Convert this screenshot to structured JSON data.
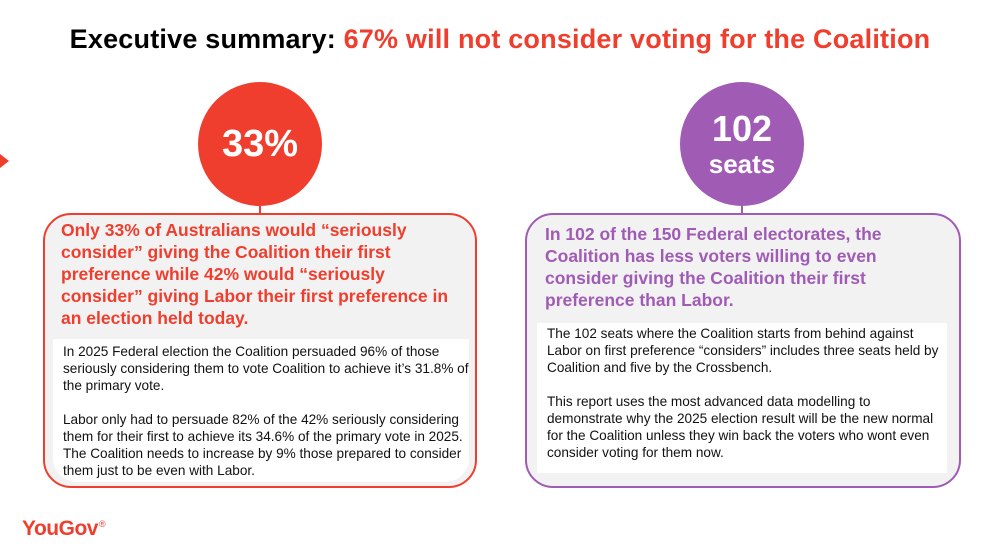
{
  "title": {
    "prefix": "Executive summary: ",
    "highlight": "67% will not consider voting for the Coalition"
  },
  "left_panel": {
    "circle_value": "33%",
    "headline": "Only 33% of Australians would “seriously consider” giving the Coalition their first preference while 42% would “seriously consider” giving Labor their first preference in an election held today.",
    "paragraphs": [
      "In 2025 Federal election the Coalition persuaded 96% of those seriously considering them to vote Coalition to achieve it’s 31.8% of the primary vote.",
      "Labor only had to persuade 82% of the 42% seriously considering them for their first to achieve its 34.6% of the primary vote in 2025. The Coalition needs to increase by 9% those prepared to consider them just to be even with Labor."
    ]
  },
  "right_panel": {
    "circle_value": "102",
    "circle_unit": "seats",
    "headline": "In 102 of the 150 Federal electorates, the Coalition has less voters willing to even consider giving the Coalition their first preference than Labor.",
    "paragraphs": [
      "The 102 seats where the Coalition starts from behind against Labor on first preference “considers” includes three seats held by Coalition and five by the Crossbench.",
      "This report uses the most advanced data modelling to demonstrate why the 2025 election result will be the new normal for the Coalition unless they win back the voters who wont even consider voting for them now."
    ]
  },
  "logo": {
    "text": "YouGov",
    "mark": "®"
  },
  "colors": {
    "accent_red": "#ef3e2d",
    "accent_purple": "#a05bb5",
    "card_bg": "#f2f2f2"
  }
}
